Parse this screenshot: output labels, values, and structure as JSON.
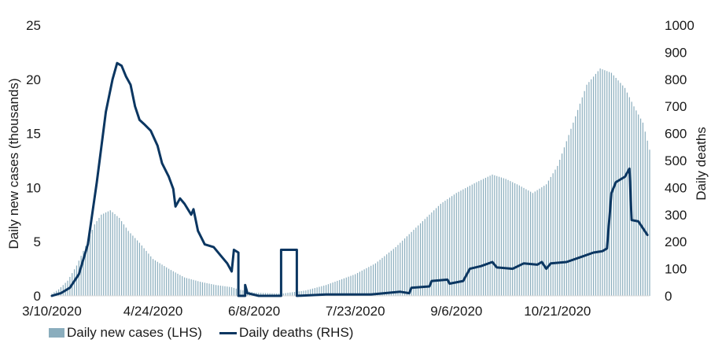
{
  "chart_data": {
    "type": "bar+line",
    "title": "",
    "x_tick_labels": [
      "3/10/2020",
      "4/24/2020",
      "6/8/2020",
      "7/23/2020",
      "9/6/2020",
      "10/21/2020"
    ],
    "x_start": "3/10/2020",
    "x_end": "12/1/2020",
    "ylabel_left": "Daily new cases (thousands)",
    "ylabel_right": "Daily deaths",
    "ylim_left": [
      0,
      25
    ],
    "ylim_right": [
      0,
      1000
    ],
    "yticks_left": [
      "0",
      "5",
      "10",
      "15",
      "20",
      "25"
    ],
    "yticks_right": [
      "0",
      "100",
      "200",
      "300",
      "400",
      "500",
      "600",
      "700",
      "800",
      "900",
      "1000"
    ],
    "bar_color": "#8aadbd",
    "line_color": "#0b3661",
    "series": [
      {
        "name": "Daily new cases (LHS)",
        "kind": "bar",
        "axis": "left",
        "keypoints": [
          [
            "3/10/2020",
            0.2
          ],
          [
            "3/13/2020",
            0.6
          ],
          [
            "3/17/2020",
            1.4
          ],
          [
            "3/21/2020",
            2.8
          ],
          [
            "3/25/2020",
            4.6
          ],
          [
            "3/29/2020",
            6.6
          ],
          [
            "4/1/2020",
            7.5
          ],
          [
            "4/5/2020",
            7.9
          ],
          [
            "4/9/2020",
            7.2
          ],
          [
            "4/13/2020",
            6.0
          ],
          [
            "4/18/2020",
            4.9
          ],
          [
            "4/24/2020",
            3.4
          ],
          [
            "5/1/2020",
            2.5
          ],
          [
            "5/8/2020",
            1.7
          ],
          [
            "5/15/2020",
            1.3
          ],
          [
            "5/22/2020",
            1.0
          ],
          [
            "5/29/2020",
            0.8
          ],
          [
            "6/1/2020",
            0.6
          ],
          [
            "6/8/2020",
            0.3
          ],
          [
            "6/20/2020",
            0.2
          ],
          [
            "7/1/2020",
            0.5
          ],
          [
            "7/10/2020",
            1.0
          ],
          [
            "7/23/2020",
            2.0
          ],
          [
            "8/1/2020",
            3.0
          ],
          [
            "8/10/2020",
            4.5
          ],
          [
            "8/20/2020",
            6.5
          ],
          [
            "8/30/2020",
            8.5
          ],
          [
            "9/6/2020",
            9.5
          ],
          [
            "9/15/2020",
            10.5
          ],
          [
            "9/22/2020",
            11.2
          ],
          [
            "9/28/2020",
            10.8
          ],
          [
            "10/4/2020",
            10.2
          ],
          [
            "10/10/2020",
            9.5
          ],
          [
            "10/16/2020",
            10.3
          ],
          [
            "10/21/2020",
            12.0
          ],
          [
            "10/28/2020",
            16.0
          ],
          [
            "11/3/2020",
            19.5
          ],
          [
            "11/9/2020",
            21.0
          ],
          [
            "11/14/2020",
            20.6
          ],
          [
            "11/20/2020",
            19.2
          ],
          [
            "11/24/2020",
            17.5
          ],
          [
            "11/28/2020",
            16.0
          ],
          [
            "12/1/2020",
            13.5
          ]
        ]
      },
      {
        "name": "Daily deaths (RHS)",
        "kind": "line",
        "axis": "right",
        "points": [
          [
            "3/10/2020",
            0
          ],
          [
            "3/14/2020",
            10
          ],
          [
            "3/18/2020",
            30
          ],
          [
            "3/22/2020",
            80
          ],
          [
            "3/26/2020",
            190
          ],
          [
            "3/30/2020",
            420
          ],
          [
            "4/3/2020",
            680
          ],
          [
            "4/6/2020",
            800
          ],
          [
            "4/8/2020",
            860
          ],
          [
            "4/10/2020",
            850
          ],
          [
            "4/12/2020",
            810
          ],
          [
            "4/14/2020",
            780
          ],
          [
            "4/16/2020",
            700
          ],
          [
            "4/18/2020",
            650
          ],
          [
            "4/20/2020",
            635
          ],
          [
            "4/23/2020",
            610
          ],
          [
            "4/26/2020",
            555
          ],
          [
            "4/28/2020",
            490
          ],
          [
            "5/1/2020",
            440
          ],
          [
            "5/3/2020",
            395
          ],
          [
            "5/4/2020",
            330
          ],
          [
            "5/6/2020",
            360
          ],
          [
            "5/8/2020",
            340
          ],
          [
            "5/11/2020",
            300
          ],
          [
            "5/12/2020",
            320
          ],
          [
            "5/14/2020",
            240
          ],
          [
            "5/17/2020",
            190
          ],
          [
            "5/21/2020",
            180
          ],
          [
            "5/24/2020",
            150
          ],
          [
            "5/27/2020",
            120
          ],
          [
            "5/29/2020",
            90
          ],
          [
            "5/30/2020",
            170
          ],
          [
            "6/1/2020",
            160
          ],
          [
            "6/1/2020",
            0
          ],
          [
            "6/4/2020",
            0
          ],
          [
            "6/4/2020",
            40
          ],
          [
            "6/5/2020",
            10
          ],
          [
            "6/10/2020",
            0
          ],
          [
            "6/20/2020",
            0
          ],
          [
            "6/20/2020",
            170
          ],
          [
            "6/27/2020",
            170
          ],
          [
            "6/27/2020",
            0
          ],
          [
            "7/10/2020",
            5
          ],
          [
            "7/30/2020",
            5
          ],
          [
            "8/5/2020",
            10
          ],
          [
            "8/12/2020",
            15
          ],
          [
            "8/16/2020",
            10
          ],
          [
            "8/17/2020",
            30
          ],
          [
            "8/25/2020",
            35
          ],
          [
            "8/26/2020",
            55
          ],
          [
            "9/2/2020",
            60
          ],
          [
            "9/3/2020",
            45
          ],
          [
            "9/9/2020",
            55
          ],
          [
            "9/12/2020",
            100
          ],
          [
            "9/17/2020",
            110
          ],
          [
            "9/22/2020",
            125
          ],
          [
            "9/24/2020",
            105
          ],
          [
            "10/1/2020",
            100
          ],
          [
            "10/6/2020",
            120
          ],
          [
            "10/12/2020",
            115
          ],
          [
            "10/14/2020",
            125
          ],
          [
            "10/16/2020",
            100
          ],
          [
            "10/18/2020",
            120
          ],
          [
            "10/25/2020",
            125
          ],
          [
            "11/1/2020",
            145
          ],
          [
            "11/6/2020",
            160
          ],
          [
            "11/10/2020",
            165
          ],
          [
            "11/12/2020",
            175
          ],
          [
            "11/14/2020",
            380
          ],
          [
            "11/16/2020",
            420
          ],
          [
            "11/20/2020",
            440
          ],
          [
            "11/22/2020",
            470
          ],
          [
            "11/23/2020",
            280
          ],
          [
            "11/26/2020",
            275
          ],
          [
            "11/28/2020",
            250
          ],
          [
            "11/30/2020",
            225
          ]
        ]
      }
    ],
    "legend_position": "bottom-left",
    "grid": false
  }
}
